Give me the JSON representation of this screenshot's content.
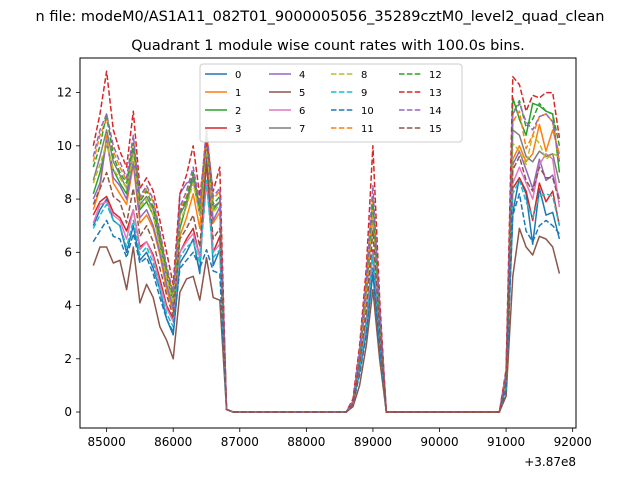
{
  "chart_data": {
    "type": "line",
    "suptitle": "n file: modeM0/AS1A11_082T01_9000005056_35289cztM0_level2_quad_clean",
    "title": "Quadrant 1 module wise count rates with 100.0s bins.",
    "xlabel": "",
    "ylabel": "",
    "x_offset_label": "+3.87e8",
    "xlim": [
      84600,
      92050
    ],
    "ylim": [
      -0.6,
      13.3
    ],
    "x_ticks": [
      85000,
      86000,
      87000,
      88000,
      89000,
      90000,
      91000,
      92000
    ],
    "x_tick_labels": [
      "85000",
      "86000",
      "87000",
      "88000",
      "89000",
      "90000",
      "91000",
      "92000"
    ],
    "y_ticks": [
      0,
      2,
      4,
      6,
      8,
      10,
      12
    ],
    "y_tick_labels": [
      "0",
      "2",
      "4",
      "6",
      "8",
      "10",
      "12"
    ],
    "grid": false,
    "legend_position": "top-center",
    "legend_columns": 4,
    "x": [
      84800,
      84900,
      85000,
      85100,
      85200,
      85300,
      85400,
      85500,
      85600,
      85700,
      85800,
      85900,
      86000,
      86100,
      86200,
      86300,
      86400,
      86500,
      86600,
      86700,
      86800,
      86900,
      87000,
      88600,
      88700,
      88800,
      88900,
      89000,
      89100,
      89200,
      90900,
      91000,
      91100,
      91200,
      91300,
      91400,
      91500,
      91600,
      91700,
      91800
    ],
    "series": [
      {
        "name": "0",
        "style": "solid",
        "color": "#1f77b4",
        "values": [
          7.0,
          7.6,
          8.0,
          7.2,
          7.0,
          6.0,
          7.0,
          5.7,
          6.0,
          5.4,
          4.6,
          3.5,
          2.9,
          5.6,
          6.0,
          6.5,
          5.2,
          9.8,
          5.5,
          6.1,
          0.1,
          0.0,
          0.0,
          0.0,
          0.3,
          1.5,
          3.0,
          5.2,
          2.5,
          0.0,
          0.0,
          0.9,
          7.5,
          8.8,
          8.2,
          6.3,
          8.4,
          7.4,
          7.5,
          6.5
        ]
      },
      {
        "name": "1",
        "style": "solid",
        "color": "#ff7f0e",
        "values": [
          7.6,
          8.4,
          10.4,
          8.6,
          8.2,
          7.8,
          9.3,
          7.1,
          7.4,
          6.9,
          5.9,
          4.6,
          3.8,
          6.6,
          7.3,
          8.2,
          6.9,
          10.0,
          7.1,
          7.5,
          0.1,
          0.0,
          0.0,
          0.0,
          0.4,
          2.0,
          4.3,
          7.4,
          3.5,
          0.0,
          0.0,
          1.2,
          9.5,
          10.0,
          9.4,
          9.7,
          10.8,
          9.8,
          10.6,
          9.7
        ]
      },
      {
        "name": "2",
        "style": "solid",
        "color": "#2ca02c",
        "values": [
          8.2,
          9.0,
          10.1,
          9.1,
          8.6,
          8.2,
          9.9,
          7.6,
          7.9,
          7.4,
          6.3,
          5.1,
          4.1,
          6.9,
          7.8,
          8.8,
          7.4,
          10.0,
          7.6,
          7.9,
          0.1,
          0.0,
          0.0,
          0.0,
          0.4,
          2.1,
          4.7,
          7.8,
          3.8,
          0.0,
          0.0,
          1.3,
          11.8,
          11.0,
          10.4,
          11.6,
          11.5,
          11.3,
          11.2,
          9.0
        ]
      },
      {
        "name": "3",
        "style": "solid",
        "color": "#d62728",
        "values": [
          7.4,
          7.9,
          8.1,
          7.5,
          7.3,
          6.8,
          7.6,
          6.2,
          6.4,
          5.9,
          5.0,
          4.0,
          3.5,
          6.0,
          6.5,
          6.9,
          5.8,
          9.4,
          6.0,
          6.6,
          0.1,
          0.0,
          0.0,
          0.0,
          0.3,
          1.7,
          3.4,
          6.1,
          2.9,
          0.0,
          0.0,
          1.0,
          8.4,
          8.8,
          8.3,
          7.2,
          8.6,
          7.9,
          8.3,
          7.0
        ]
      },
      {
        "name": "4",
        "style": "solid",
        "color": "#9467bd",
        "values": [
          8.0,
          8.6,
          10.2,
          8.8,
          8.5,
          8.0,
          9.4,
          7.3,
          7.6,
          7.0,
          6.0,
          4.8,
          3.9,
          8.2,
          8.6,
          8.7,
          7.4,
          10.2,
          7.2,
          7.7,
          0.1,
          0.0,
          0.0,
          0.0,
          0.4,
          2.0,
          4.4,
          7.6,
          3.6,
          0.0,
          0.0,
          1.2,
          9.3,
          9.8,
          9.1,
          8.4,
          9.5,
          8.7,
          8.9,
          8.0
        ]
      },
      {
        "name": "5",
        "style": "solid",
        "color": "#8c564b",
        "values": [
          5.5,
          6.2,
          6.2,
          5.6,
          5.7,
          4.6,
          6.2,
          4.1,
          4.8,
          4.3,
          3.2,
          2.7,
          2.0,
          4.5,
          5.0,
          5.1,
          4.2,
          5.8,
          4.3,
          4.2,
          0.1,
          0.0,
          0.0,
          0.0,
          0.2,
          1.0,
          2.5,
          4.6,
          2.0,
          0.0,
          0.0,
          0.6,
          5.1,
          6.9,
          6.2,
          5.9,
          6.6,
          6.5,
          6.2,
          5.2
        ]
      },
      {
        "name": "6",
        "style": "solid",
        "color": "#e377c2",
        "values": [
          7.1,
          7.8,
          7.9,
          7.4,
          7.2,
          6.5,
          7.6,
          6.1,
          6.4,
          5.8,
          4.8,
          3.9,
          3.4,
          6.0,
          6.4,
          6.7,
          5.8,
          8.6,
          6.0,
          6.3,
          0.1,
          0.0,
          0.0,
          0.0,
          0.3,
          1.6,
          3.3,
          6.0,
          2.8,
          0.0,
          0.0,
          1.0,
          8.6,
          9.2,
          8.6,
          8.0,
          9.3,
          9.7,
          9.5,
          7.7
        ]
      },
      {
        "name": "7",
        "style": "solid",
        "color": "#7f7f7f",
        "values": [
          8.7,
          9.6,
          10.6,
          9.4,
          8.9,
          8.4,
          9.9,
          7.8,
          8.1,
          7.6,
          6.5,
          5.4,
          4.4,
          7.4,
          7.9,
          8.9,
          7.6,
          10.3,
          7.7,
          7.9,
          0.1,
          0.0,
          0.0,
          0.0,
          0.4,
          2.1,
          4.6,
          7.5,
          3.6,
          0.0,
          0.0,
          1.3,
          10.6,
          10.4,
          9.6,
          9.4,
          9.8,
          9.6,
          9.7,
          8.6
        ]
      },
      {
        "name": "8",
        "style": "dashed",
        "color": "#bcbd22",
        "values": [
          8.6,
          9.3,
          10.1,
          9.1,
          8.8,
          8.4,
          9.7,
          7.7,
          8.0,
          7.4,
          6.2,
          5.1,
          4.1,
          7.2,
          7.7,
          8.6,
          7.4,
          10.0,
          7.5,
          7.8,
          0.1,
          0.0,
          0.0,
          0.0,
          0.4,
          2.1,
          4.5,
          7.6,
          3.6,
          0.0,
          0.0,
          1.3,
          10.1,
          9.8,
          9.3,
          10.4,
          10.1,
          9.5,
          9.7,
          9.6
        ]
      },
      {
        "name": "9",
        "style": "dashed",
        "color": "#17becf",
        "values": [
          6.9,
          7.4,
          7.8,
          7.2,
          7.0,
          6.2,
          7.2,
          5.9,
          6.2,
          5.6,
          4.6,
          3.7,
          3.2,
          5.8,
          6.2,
          6.4,
          5.6,
          8.7,
          5.8,
          6.1,
          0.1,
          0.0,
          0.0,
          0.0,
          0.3,
          1.6,
          3.2,
          5.9,
          2.7,
          0.0,
          0.0,
          0.9,
          8.2,
          8.7,
          7.9,
          7.3,
          8.1,
          8.2,
          8.1,
          7.0
        ]
      },
      {
        "name": "10",
        "style": "dashed",
        "color": "#1f77b4",
        "values": [
          6.4,
          6.8,
          7.2,
          6.6,
          6.5,
          5.8,
          6.7,
          5.6,
          5.8,
          5.2,
          4.3,
          3.5,
          3.0,
          5.4,
          5.7,
          6.0,
          5.4,
          6.1,
          5.3,
          5.2,
          0.1,
          0.0,
          0.0,
          0.0,
          0.3,
          1.4,
          2.9,
          5.4,
          2.5,
          0.0,
          0.0,
          0.8,
          7.4,
          8.2,
          6.8,
          6.4,
          7.0,
          7.2,
          7.0,
          6.7
        ]
      },
      {
        "name": "11",
        "style": "dashed",
        "color": "#ff7f0e",
        "values": [
          9.4,
          10.4,
          11.0,
          9.8,
          9.2,
          8.7,
          10.3,
          8.0,
          8.4,
          7.9,
          6.7,
          5.4,
          4.4,
          7.6,
          8.1,
          9.0,
          7.7,
          10.6,
          8.0,
          8.3,
          0.1,
          0.0,
          0.0,
          0.0,
          0.4,
          2.2,
          4.8,
          8.1,
          3.9,
          0.0,
          0.0,
          1.4,
          10.9,
          11.3,
          9.9,
          10.4,
          11.1,
          11.2,
          10.9,
          9.4
        ]
      },
      {
        "name": "12",
        "style": "dashed",
        "color": "#2ca02c",
        "values": [
          9.2,
          10.0,
          11.2,
          9.6,
          9.0,
          8.6,
          10.1,
          7.9,
          8.3,
          7.7,
          6.6,
          5.3,
          4.3,
          7.5,
          8.0,
          9.0,
          7.6,
          10.4,
          7.8,
          8.1,
          0.1,
          0.0,
          0.0,
          0.0,
          0.4,
          2.2,
          4.8,
          8.0,
          3.8,
          0.0,
          0.0,
          1.4,
          11.2,
          11.7,
          10.7,
          11.0,
          11.6,
          11.3,
          11.2,
          10.0
        ]
      },
      {
        "name": "13",
        "style": "dashed",
        "color": "#d62728",
        "values": [
          10.0,
          11.2,
          12.8,
          10.6,
          9.8,
          9.2,
          11.3,
          8.4,
          8.8,
          8.3,
          7.2,
          6.0,
          4.8,
          8.2,
          8.9,
          10.0,
          8.1,
          10.2,
          8.3,
          9.2,
          0.1,
          0.0,
          0.0,
          0.0,
          0.5,
          2.5,
          5.4,
          10.0,
          4.3,
          0.0,
          0.0,
          1.6,
          12.6,
          12.3,
          11.3,
          11.9,
          11.8,
          12.0,
          12.0,
          10.3
        ]
      },
      {
        "name": "14",
        "style": "dashed",
        "color": "#9467bd",
        "values": [
          9.6,
          10.6,
          11.2,
          10.0,
          9.4,
          8.8,
          10.4,
          8.1,
          8.5,
          8.0,
          6.8,
          5.5,
          4.5,
          7.7,
          8.3,
          9.2,
          7.8,
          10.7,
          8.1,
          8.4,
          0.1,
          0.0,
          0.0,
          0.0,
          0.4,
          2.3,
          5.0,
          8.5,
          4.0,
          0.0,
          0.0,
          1.5,
          11.2,
          11.6,
          10.9,
          10.6,
          11.1,
          11.2,
          10.9,
          9.4
        ]
      },
      {
        "name": "15",
        "style": "dashed",
        "color": "#8c564b",
        "values": [
          7.8,
          8.4,
          9.0,
          8.1,
          7.9,
          7.1,
          8.4,
          6.6,
          7.0,
          6.4,
          5.4,
          4.4,
          3.6,
          6.5,
          6.9,
          7.4,
          6.2,
          9.4,
          6.5,
          6.9,
          0.1,
          0.0,
          0.0,
          0.0,
          0.3,
          1.8,
          3.8,
          6.8,
          3.1,
          0.0,
          0.0,
          1.1,
          9.1,
          9.6,
          8.7,
          8.3,
          9.2,
          8.8,
          8.8,
          7.9
        ]
      }
    ]
  }
}
